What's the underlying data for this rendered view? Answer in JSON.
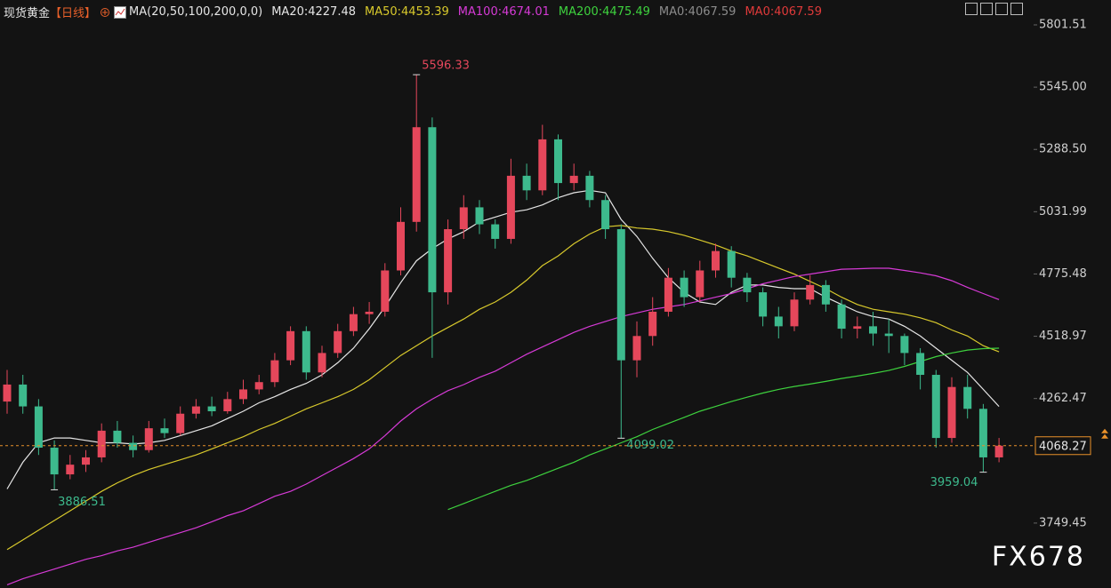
{
  "chart_data": {
    "type": "candlestick",
    "header": {
      "title": "现货黄金",
      "period": "【日线】",
      "indicator": "MA(20,50,100,200,0,0)"
    },
    "legend_items": [
      {
        "text": "MA20:4227.48",
        "color": "#e6e6e6"
      },
      {
        "text": "MA50:4453.39",
        "color": "#d8c92c"
      },
      {
        "text": "MA100:4674.01",
        "color": "#d63ad6"
      },
      {
        "text": "MA200:4475.49",
        "color": "#3ed23e"
      },
      {
        "text": "MA0:4067.59",
        "color": "#8c8c8c"
      },
      {
        "text": "MA0:4067.59",
        "color": "#e03a3a"
      }
    ],
    "up_color": "#e5475b",
    "down_color": "#3dba8d",
    "last_price_color": "#e8902a",
    "ylim": [
      3482,
      5904
    ],
    "yticks": [
      5801.51,
      {
        "value": 5545,
        "label": "5545.00"
      },
      {
        "value": 5288.5,
        "label": "5288.50"
      },
      5031.99,
      4775.48,
      4518.97,
      4262.47,
      3749.45
    ],
    "grid": false,
    "open": [
      4250,
      4320,
      4230,
      4060,
      3950,
      3990,
      4020,
      4130,
      4080,
      4050,
      4140,
      4120,
      4200,
      4230,
      4210,
      4260,
      4300,
      4330,
      4420,
      4540,
      4370,
      4450,
      4540,
      4610,
      4620,
      4790,
      4990,
      5380,
      4700,
      4960,
      5050,
      4980,
      4920,
      5180,
      5120,
      5330,
      5150,
      5180,
      5080,
      4960,
      4420,
      4520,
      4620,
      4760,
      4680,
      4790,
      4870,
      4760,
      4700,
      4600,
      4560,
      4670,
      4730,
      4650,
      4550,
      4560,
      4530,
      4520,
      4450,
      4360,
      4100,
      4310,
      4220,
      4020
    ],
    "high": [
      4380,
      4360,
      4260,
      4090,
      4030,
      4050,
      4160,
      4170,
      4110,
      4170,
      4180,
      4230,
      4260,
      4270,
      4290,
      4340,
      4360,
      4450,
      4560,
      4560,
      4480,
      4570,
      4640,
      4660,
      4820,
      5050,
      5596.33,
      5420,
      5000,
      5100,
      5080,
      5000,
      5250,
      5230,
      5390,
      5350,
      5230,
      5200,
      5100,
      4980,
      4580,
      4680,
      4800,
      4790,
      4830,
      4900,
      4890,
      4780,
      4720,
      4640,
      4700,
      4770,
      4750,
      4670,
      4600,
      4620,
      4590,
      4530,
      4470,
      4380,
      4350,
      4360,
      4240,
      4100
    ],
    "low": [
      4200,
      4200,
      4030,
      3886.51,
      3930,
      3960,
      4000,
      4060,
      4020,
      4040,
      4100,
      4110,
      4180,
      4190,
      4200,
      4240,
      4280,
      4310,
      4400,
      4340,
      4350,
      4430,
      4520,
      4570,
      4600,
      4770,
      4950,
      4430,
      4650,
      4920,
      4940,
      4880,
      4900,
      5080,
      5100,
      5080,
      5120,
      5050,
      4920,
      4099.02,
      4350,
      4480,
      4600,
      4640,
      4660,
      4760,
      4720,
      4660,
      4560,
      4510,
      4540,
      4650,
      4620,
      4510,
      4510,
      4480,
      4450,
      4400,
      4300,
      4060,
      4080,
      4180,
      3959.04,
      4000
    ],
    "close": [
      4320,
      4230,
      4060,
      3950,
      3990,
      4020,
      4130,
      4080,
      4050,
      4140,
      4120,
      4200,
      4230,
      4210,
      4260,
      4300,
      4330,
      4420,
      4540,
      4370,
      4450,
      4540,
      4610,
      4620,
      4790,
      4990,
      5380,
      4700,
      4960,
      5050,
      4980,
      4920,
      5180,
      5120,
      5330,
      5150,
      5180,
      5080,
      4960,
      4420,
      4520,
      4620,
      4760,
      4680,
      4790,
      4870,
      4760,
      4700,
      4600,
      4560,
      4670,
      4730,
      4650,
      4550,
      4560,
      4530,
      4520,
      4450,
      4360,
      4100,
      4310,
      4220,
      4020,
      4068.27
    ],
    "series": [
      {
        "name": "MA20",
        "color": "#e6e6e6",
        "values": [
          3890,
          4000,
          4080,
          4100,
          4100,
          4090,
          4080,
          4080,
          4075,
          4080,
          4090,
          4110,
          4130,
          4150,
          4180,
          4210,
          4245,
          4270,
          4300,
          4325,
          4360,
          4410,
          4470,
          4550,
          4640,
          4740,
          4830,
          4880,
          4920,
          4950,
          4990,
          5010,
          5030,
          5040,
          5060,
          5090,
          5110,
          5120,
          5110,
          5000,
          4930,
          4840,
          4760,
          4700,
          4660,
          4650,
          4700,
          4730,
          4730,
          4720,
          4715,
          4715,
          4680,
          4650,
          4620,
          4600,
          4590,
          4560,
          4520,
          4470,
          4420,
          4370,
          4300,
          4230
        ]
      },
      {
        "name": "MA50",
        "color": "#d8c92c",
        "values": [
          3640,
          3680,
          3720,
          3760,
          3800,
          3840,
          3880,
          3915,
          3945,
          3970,
          3990,
          4010,
          4030,
          4055,
          4080,
          4105,
          4135,
          4160,
          4190,
          4220,
          4245,
          4270,
          4300,
          4340,
          4390,
          4440,
          4480,
          4520,
          4555,
          4590,
          4630,
          4660,
          4700,
          4750,
          4810,
          4850,
          4900,
          4940,
          4970,
          4975,
          4965,
          4960,
          4950,
          4935,
          4915,
          4895,
          4870,
          4850,
          4825,
          4800,
          4775,
          4745,
          4715,
          4680,
          4650,
          4630,
          4620,
          4610,
          4595,
          4575,
          4545,
          4520,
          4480,
          4455
        ]
      },
      {
        "name": "MA100",
        "color": "#d63ad6",
        "values": [
          3495,
          3520,
          3540,
          3560,
          3580,
          3600,
          3615,
          3635,
          3650,
          3670,
          3690,
          3710,
          3730,
          3755,
          3780,
          3800,
          3830,
          3860,
          3880,
          3910,
          3945,
          3980,
          4015,
          4055,
          4110,
          4170,
          4220,
          4260,
          4295,
          4320,
          4350,
          4375,
          4410,
          4445,
          4475,
          4505,
          4535,
          4560,
          4580,
          4600,
          4615,
          4630,
          4640,
          4650,
          4665,
          4680,
          4695,
          4715,
          4735,
          4750,
          4765,
          4775,
          4785,
          4795,
          4797,
          4799,
          4799,
          4790,
          4780,
          4768,
          4748,
          4720,
          4695,
          4670
        ]
      },
      {
        "name": "MA200",
        "color": "#3ed23e",
        "values": [
          null,
          null,
          null,
          null,
          null,
          null,
          null,
          null,
          null,
          null,
          null,
          null,
          null,
          null,
          null,
          null,
          null,
          null,
          null,
          null,
          null,
          null,
          null,
          null,
          null,
          null,
          null,
          null,
          3805,
          3830,
          3855,
          3880,
          3905,
          3925,
          3950,
          3975,
          4000,
          4030,
          4055,
          4080,
          4105,
          4135,
          4160,
          4185,
          4210,
          4230,
          4250,
          4268,
          4285,
          4300,
          4312,
          4322,
          4333,
          4345,
          4355,
          4366,
          4378,
          4395,
          4415,
          4435,
          4450,
          4462,
          4468,
          4470
        ]
      }
    ],
    "watermark": "FX678"
  }
}
